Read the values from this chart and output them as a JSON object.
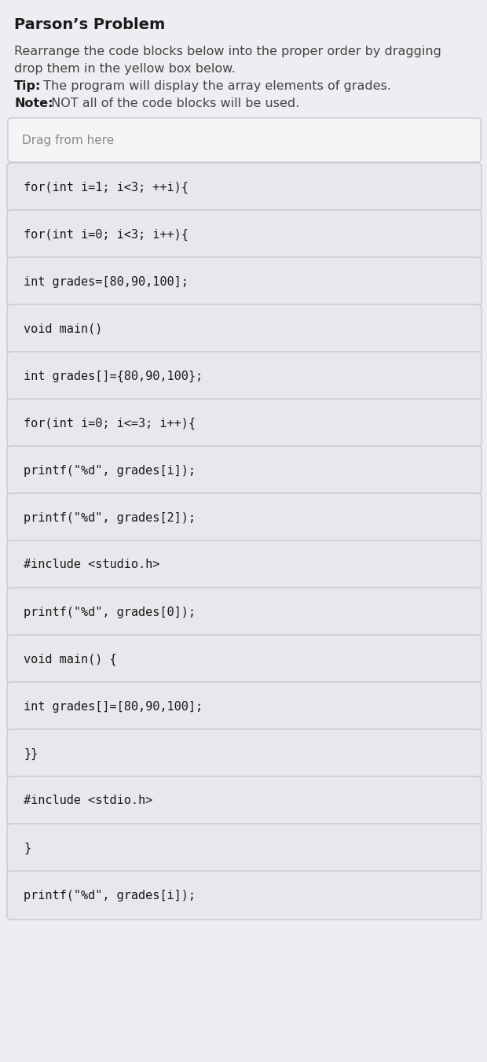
{
  "title": "Parson’s Problem",
  "description_lines": [
    "Rearrange the code blocks below into the proper order by dragging",
    "drop them in the yellow box below."
  ],
  "tip_label": "Tip:",
  "tip_text": " The program will display the array elements of grades.",
  "note_label": "Note:",
  "note_text": " NOT all of the code blocks will be used.",
  "drag_label": "Drag from here",
  "code_blocks": [
    "for(int i=1; i<3; ++i){",
    "for(int i=0; i<3; i++){",
    "int grades=[80,90,100];",
    "void main()",
    "int grades[]={80,90,100};",
    "for(int i=0; i<=3; i++){",
    "printf(\"%d\", grades[i]);",
    "printf(\"%d\", grades[2]);",
    "#include <studio.h>",
    "printf(\"%d\", grades[0]);",
    "void main() {",
    "int grades[]=[80,90,100];",
    "}}",
    "#include <stdio.h>",
    "}",
    "printf(\"%d\", grades[i]);"
  ],
  "page_bg": "#eeeef2",
  "header_bg": "#eeeef2",
  "drag_area_bg": "#f5f5f8",
  "drag_area_border": "#c8c8d8",
  "block_bg": "#e8e8ec",
  "block_border": "#c8c8d8",
  "title_color": "#1a1a1a",
  "desc_color": "#444444",
  "bold_color": "#1a1a1a",
  "code_color": "#1a1a1a",
  "drag_label_color": "#888888",
  "title_fontsize": 14,
  "desc_fontsize": 11.5,
  "code_fontsize": 11,
  "drag_label_fontsize": 11
}
